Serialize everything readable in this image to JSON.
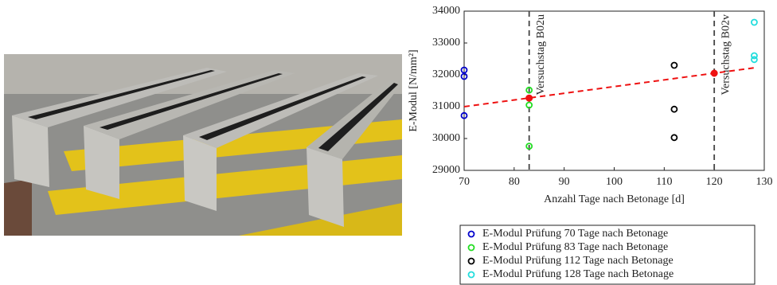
{
  "chart_data": {
    "type": "scatter",
    "x_label": "Anzahl Tage nach Betonage [d]",
    "y_label": "E-Modul [N/mm²]",
    "xlim": [
      70,
      130
    ],
    "xticks": [
      70,
      80,
      90,
      100,
      110,
      120,
      130
    ],
    "ylim": [
      29000,
      34000
    ],
    "yticks": [
      29000,
      30000,
      31000,
      32000,
      33000,
      34000
    ],
    "series": [
      {
        "name": "E-Modul Prüfung 70 Tage nach Betonage",
        "color": "#0000cc",
        "x": [
          70,
          70,
          70
        ],
        "values": [
          32150,
          31950,
          30720
        ]
      },
      {
        "name": "E-Modul Prüfung 83 Tage nach Betonage",
        "color": "#22dd22",
        "x": [
          83,
          83,
          83
        ],
        "values": [
          31520,
          31050,
          29760
        ]
      },
      {
        "name": "E-Modul Prüfung 112 Tage nach Betonage",
        "color": "#000000",
        "x": [
          112,
          112,
          112
        ],
        "values": [
          32300,
          30920,
          30030
        ]
      },
      {
        "name": "E-Modul Prüfung 128 Tage nach Betonage",
        "color": "#22dddd",
        "x": [
          128,
          128,
          128
        ],
        "values": [
          33650,
          32600,
          32480
        ]
      }
    ],
    "fit_points": {
      "color": "#ee1111",
      "x": [
        83,
        120
      ],
      "values": [
        31270,
        32050
      ]
    },
    "trend_line": {
      "color": "#ee1111",
      "x": [
        70,
        128
      ],
      "values": [
        31000,
        32220
      ]
    },
    "annotations": [
      {
        "text": "Versuchstag B02u",
        "x": 83
      },
      {
        "text": "Versuchstag B02v",
        "x": 120
      }
    ]
  }
}
